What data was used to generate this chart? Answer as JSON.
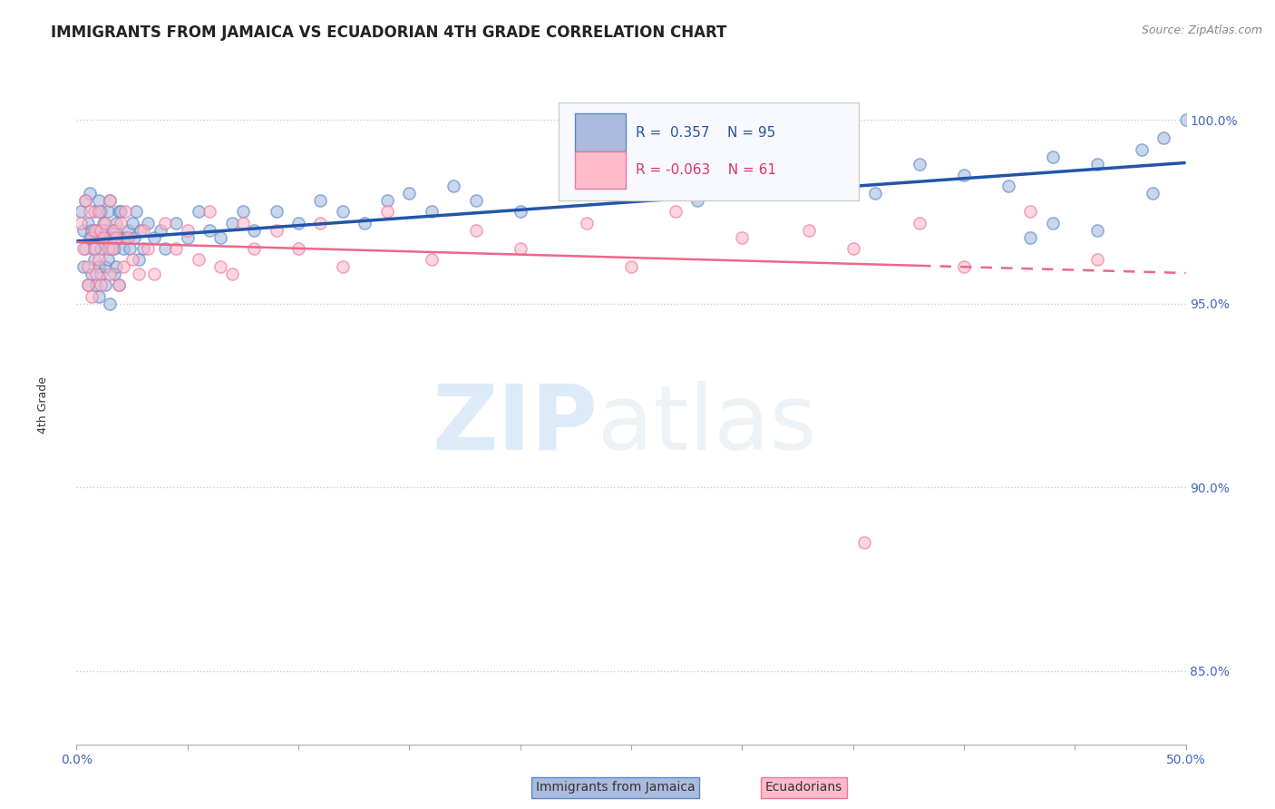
{
  "title": "IMMIGRANTS FROM JAMAICA VS ECUADORIAN 4TH GRADE CORRELATION CHART",
  "source_text": "Source: ZipAtlas.com",
  "ylabel": "4th Grade",
  "xlim": [
    0.0,
    50.0
  ],
  "ylim": [
    83.0,
    101.5
  ],
  "yticks": [
    85.0,
    90.0,
    95.0,
    100.0
  ],
  "ytick_labels": [
    "85.0%",
    "90.0%",
    "95.0%",
    "100.0%"
  ],
  "xtick_positions": [
    0.0,
    5.0,
    10.0,
    15.0,
    20.0,
    25.0,
    30.0,
    35.0,
    40.0,
    45.0,
    50.0
  ],
  "xtick_labels": [
    "0.0%",
    "",
    "",
    "",
    "",
    "",
    "",
    "",
    "",
    "",
    "50.0%"
  ],
  "blue_R": 0.357,
  "blue_N": 95,
  "pink_R": -0.063,
  "pink_N": 61,
  "blue_fill_color": "#AABBDD",
  "blue_edge_color": "#5588CC",
  "pink_fill_color": "#FFBBCC",
  "pink_edge_color": "#EE7799",
  "blue_line_color": "#2255AA",
  "pink_line_color": "#EE6688",
  "dot_size": 90,
  "dot_alpha": 0.6,
  "background_color": "#FFFFFF",
  "title_fontsize": 12,
  "label_fontsize": 9,
  "tick_fontsize": 10,
  "legend_fontsize": 11,
  "blue_scatter_x": [
    0.2,
    0.3,
    0.3,
    0.4,
    0.4,
    0.5,
    0.5,
    0.6,
    0.6,
    0.7,
    0.7,
    0.8,
    0.8,
    0.8,
    0.9,
    0.9,
    1.0,
    1.0,
    1.0,
    1.0,
    1.1,
    1.1,
    1.1,
    1.2,
    1.2,
    1.3,
    1.3,
    1.3,
    1.4,
    1.4,
    1.5,
    1.5,
    1.5,
    1.6,
    1.6,
    1.7,
    1.7,
    1.8,
    1.8,
    1.9,
    1.9,
    2.0,
    2.0,
    2.1,
    2.2,
    2.3,
    2.4,
    2.5,
    2.6,
    2.7,
    2.8,
    2.9,
    3.0,
    3.2,
    3.5,
    3.8,
    4.0,
    4.5,
    5.0,
    5.5,
    6.0,
    6.5,
    7.0,
    7.5,
    8.0,
    9.0,
    10.0,
    11.0,
    12.0,
    13.0,
    14.0,
    15.0,
    16.0,
    17.0,
    18.0,
    20.0,
    22.0,
    24.0,
    26.0,
    28.0,
    30.0,
    33.0,
    36.0,
    38.0,
    40.0,
    42.0,
    44.0,
    46.0,
    48.0,
    49.0,
    50.0,
    46.0,
    48.5,
    44.0,
    43.0
  ],
  "blue_scatter_y": [
    97.5,
    97.0,
    96.0,
    97.8,
    96.5,
    97.2,
    95.5,
    96.8,
    98.0,
    97.0,
    95.8,
    96.5,
    97.5,
    96.2,
    97.0,
    95.5,
    96.8,
    97.8,
    96.0,
    95.2,
    97.5,
    96.5,
    95.8,
    97.2,
    96.8,
    97.0,
    96.0,
    95.5,
    97.5,
    96.2,
    97.8,
    96.5,
    95.0,
    97.0,
    96.8,
    96.5,
    95.8,
    97.2,
    96.0,
    97.5,
    95.5,
    96.8,
    97.5,
    96.5,
    96.8,
    97.0,
    96.5,
    97.2,
    96.8,
    97.5,
    96.2,
    97.0,
    96.5,
    97.2,
    96.8,
    97.0,
    96.5,
    97.2,
    96.8,
    97.5,
    97.0,
    96.8,
    97.2,
    97.5,
    97.0,
    97.5,
    97.2,
    97.8,
    97.5,
    97.2,
    97.8,
    98.0,
    97.5,
    98.2,
    97.8,
    97.5,
    98.0,
    98.2,
    98.5,
    97.8,
    98.2,
    98.5,
    98.0,
    98.8,
    98.5,
    98.2,
    99.0,
    98.8,
    99.2,
    99.5,
    100.0,
    97.0,
    98.0,
    97.2,
    96.8
  ],
  "pink_scatter_x": [
    0.2,
    0.3,
    0.4,
    0.5,
    0.5,
    0.6,
    0.7,
    0.7,
    0.8,
    0.8,
    0.9,
    1.0,
    1.0,
    1.1,
    1.1,
    1.2,
    1.3,
    1.4,
    1.5,
    1.5,
    1.6,
    1.7,
    1.8,
    1.9,
    2.0,
    2.1,
    2.2,
    2.3,
    2.5,
    2.8,
    3.0,
    3.2,
    3.5,
    4.0,
    4.5,
    5.0,
    5.5,
    6.0,
    6.5,
    7.0,
    7.5,
    8.0,
    9.0,
    10.0,
    11.0,
    12.0,
    14.0,
    16.0,
    18.0,
    20.0,
    23.0,
    25.0,
    27.0,
    30.0,
    33.0,
    35.0,
    38.0,
    40.0,
    43.0,
    46.0,
    35.5
  ],
  "pink_scatter_y": [
    97.2,
    96.5,
    97.8,
    96.0,
    95.5,
    97.5,
    96.8,
    95.2,
    97.0,
    96.5,
    95.8,
    97.5,
    96.2,
    97.0,
    95.5,
    96.8,
    97.2,
    96.5,
    97.8,
    95.8,
    96.5,
    97.0,
    96.8,
    95.5,
    97.2,
    96.0,
    97.5,
    96.8,
    96.2,
    95.8,
    97.0,
    96.5,
    95.8,
    97.2,
    96.5,
    97.0,
    96.2,
    97.5,
    96.0,
    95.8,
    97.2,
    96.5,
    97.0,
    96.5,
    97.2,
    96.0,
    97.5,
    96.2,
    97.0,
    96.5,
    97.2,
    96.0,
    97.5,
    96.8,
    97.0,
    96.5,
    97.2,
    96.0,
    97.5,
    96.2,
    88.5
  ]
}
